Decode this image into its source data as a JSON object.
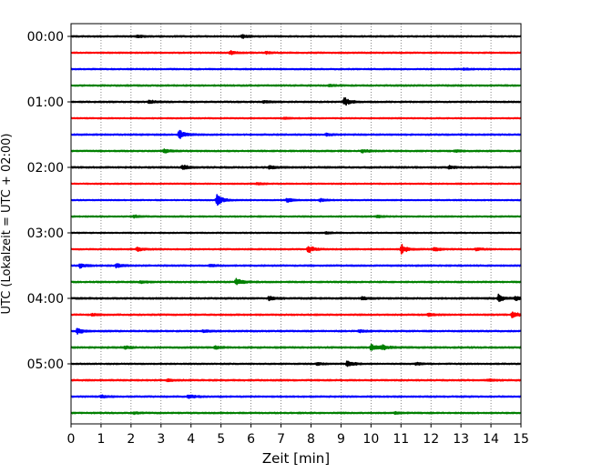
{
  "chart_data": {
    "type": "line",
    "title": "",
    "xlabel": "Zeit  [min]",
    "ylabel": "UTC (Lokalzeit = UTC + 02:00)",
    "xlim": [
      0,
      15
    ],
    "x_ticks": [
      "0",
      "1",
      "2",
      "3",
      "4",
      "5",
      "6",
      "7",
      "8",
      "9",
      "10",
      "11",
      "12",
      "13",
      "14",
      "15"
    ],
    "y_tick_labels": [
      "00:00",
      "01:00",
      "02:00",
      "03:00",
      "04:00",
      "05:00"
    ],
    "y_tick_row_indices": [
      0,
      4,
      8,
      12,
      16,
      20
    ],
    "grid": "vertical dotted at each minute",
    "series_colors": [
      "#000000",
      "#ff0000",
      "#0000ff",
      "#008000"
    ],
    "rows": [
      {
        "start": "00:00",
        "color": "#000000",
        "noise": 0.5,
        "events": [
          {
            "t": 5.7,
            "amp": 1.2
          },
          {
            "t": 2.2,
            "amp": 0.9
          }
        ]
      },
      {
        "start": "00:15",
        "color": "#ff0000",
        "noise": 0.45,
        "events": [
          {
            "t": 5.3,
            "amp": 1.6
          },
          {
            "t": 6.5,
            "amp": 0.8
          }
        ]
      },
      {
        "start": "00:30",
        "color": "#0000ff",
        "noise": 0.45,
        "events": [
          {
            "t": 13.1,
            "amp": 0.6
          }
        ]
      },
      {
        "start": "00:45",
        "color": "#008000",
        "noise": 0.5,
        "events": [
          {
            "t": 8.6,
            "amp": 0.6
          }
        ]
      },
      {
        "start": "01:00",
        "color": "#000000",
        "noise": 0.5,
        "events": [
          {
            "t": 2.6,
            "amp": 1.2
          },
          {
            "t": 9.1,
            "amp": 3.2
          },
          {
            "t": 6.4,
            "amp": 0.9
          }
        ]
      },
      {
        "start": "01:15",
        "color": "#ff0000",
        "noise": 0.4,
        "events": [
          {
            "t": 7.1,
            "amp": 0.7
          }
        ]
      },
      {
        "start": "01:30",
        "color": "#0000ff",
        "noise": 0.5,
        "events": [
          {
            "t": 3.6,
            "amp": 3.6
          },
          {
            "t": 8.5,
            "amp": 0.9
          }
        ]
      },
      {
        "start": "01:45",
        "color": "#008000",
        "noise": 0.5,
        "events": [
          {
            "t": 3.1,
            "amp": 1.3
          },
          {
            "t": 9.7,
            "amp": 1.2
          },
          {
            "t": 12.8,
            "amp": 0.8
          }
        ]
      },
      {
        "start": "02:00",
        "color": "#000000",
        "noise": 0.55,
        "events": [
          {
            "t": 3.7,
            "amp": 1.8
          },
          {
            "t": 6.6,
            "amp": 1.2
          },
          {
            "t": 12.6,
            "amp": 1.0
          }
        ]
      },
      {
        "start": "02:15",
        "color": "#ff0000",
        "noise": 0.4,
        "events": [
          {
            "t": 6.2,
            "amp": 0.8
          }
        ]
      },
      {
        "start": "02:30",
        "color": "#0000ff",
        "noise": 0.4,
        "events": [
          {
            "t": 4.85,
            "amp": 4.2
          },
          {
            "t": 7.2,
            "amp": 1.6
          },
          {
            "t": 8.3,
            "amp": 1.0
          }
        ]
      },
      {
        "start": "02:45",
        "color": "#008000",
        "noise": 0.45,
        "events": [
          {
            "t": 2.1,
            "amp": 1.0
          },
          {
            "t": 10.2,
            "amp": 0.8
          }
        ]
      },
      {
        "start": "03:00",
        "color": "#000000",
        "noise": 0.4,
        "events": [
          {
            "t": 8.5,
            "amp": 0.7
          }
        ]
      },
      {
        "start": "03:15",
        "color": "#ff0000",
        "noise": 0.45,
        "events": [
          {
            "t": 2.2,
            "amp": 1.6
          },
          {
            "t": 7.9,
            "amp": 3.0
          },
          {
            "t": 11.0,
            "amp": 3.8
          },
          {
            "t": 12.1,
            "amp": 1.6
          },
          {
            "t": 13.5,
            "amp": 1.0
          }
        ]
      },
      {
        "start": "03:30",
        "color": "#0000ff",
        "noise": 0.5,
        "events": [
          {
            "t": 0.3,
            "amp": 1.6
          },
          {
            "t": 1.5,
            "amp": 1.4
          },
          {
            "t": 4.6,
            "amp": 0.9
          }
        ]
      },
      {
        "start": "03:45",
        "color": "#008000",
        "noise": 0.5,
        "events": [
          {
            "t": 5.5,
            "amp": 2.6
          },
          {
            "t": 2.3,
            "amp": 0.8
          }
        ]
      },
      {
        "start": "04:00",
        "color": "#000000",
        "noise": 0.55,
        "events": [
          {
            "t": 6.6,
            "amp": 1.6
          },
          {
            "t": 14.25,
            "amp": 2.6
          },
          {
            "t": 14.8,
            "amp": 1.6
          },
          {
            "t": 9.7,
            "amp": 1.1
          }
        ]
      },
      {
        "start": "04:15",
        "color": "#ff0000",
        "noise": 0.5,
        "events": [
          {
            "t": 14.7,
            "amp": 2.6
          },
          {
            "t": 11.9,
            "amp": 1.0
          },
          {
            "t": 0.7,
            "amp": 0.9
          }
        ]
      },
      {
        "start": "04:30",
        "color": "#0000ff",
        "noise": 0.5,
        "events": [
          {
            "t": 0.2,
            "amp": 2.2
          },
          {
            "t": 4.4,
            "amp": 1.0
          },
          {
            "t": 9.6,
            "amp": 0.9
          }
        ]
      },
      {
        "start": "04:45",
        "color": "#008000",
        "noise": 0.55,
        "events": [
          {
            "t": 10.0,
            "amp": 2.2
          },
          {
            "t": 10.35,
            "amp": 2.0
          },
          {
            "t": 1.8,
            "amp": 1.0
          },
          {
            "t": 4.8,
            "amp": 0.9
          }
        ]
      },
      {
        "start": "05:00",
        "color": "#000000",
        "noise": 0.45,
        "events": [
          {
            "t": 9.2,
            "amp": 2.4
          },
          {
            "t": 8.2,
            "amp": 1.0
          },
          {
            "t": 11.5,
            "amp": 0.9
          }
        ]
      },
      {
        "start": "05:15",
        "color": "#ff0000",
        "noise": 0.5,
        "events": [
          {
            "t": 3.2,
            "amp": 0.9
          },
          {
            "t": 13.9,
            "amp": 0.8
          }
        ]
      },
      {
        "start": "05:30",
        "color": "#0000ff",
        "noise": 0.5,
        "events": [
          {
            "t": 3.9,
            "amp": 1.8
          },
          {
            "t": 1.0,
            "amp": 1.0
          }
        ]
      },
      {
        "start": "05:45",
        "color": "#008000",
        "noise": 0.5,
        "events": [
          {
            "t": 10.8,
            "amp": 0.7
          },
          {
            "t": 2.1,
            "amp": 0.6
          }
        ]
      }
    ]
  }
}
